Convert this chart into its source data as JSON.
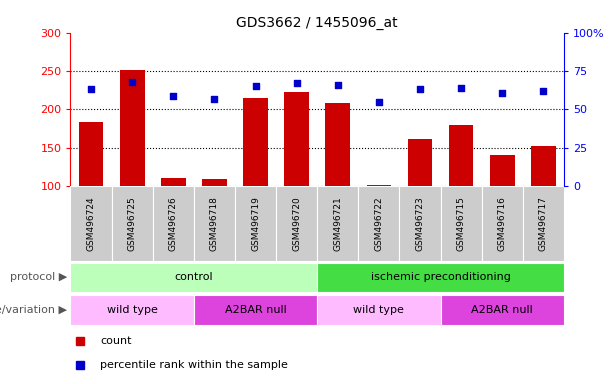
{
  "title": "GDS3662 / 1455096_at",
  "samples": [
    "GSM496724",
    "GSM496725",
    "GSM496726",
    "GSM496718",
    "GSM496719",
    "GSM496720",
    "GSM496721",
    "GSM496722",
    "GSM496723",
    "GSM496715",
    "GSM496716",
    "GSM496717"
  ],
  "counts": [
    184,
    252,
    111,
    109,
    215,
    223,
    209,
    102,
    161,
    180,
    141,
    152
  ],
  "percentiles": [
    63,
    68,
    59,
    57,
    65,
    67,
    66,
    55,
    63,
    64,
    61,
    62
  ],
  "ylim_left": [
    100,
    300
  ],
  "ylim_right": [
    0,
    100
  ],
  "yticks_left": [
    100,
    150,
    200,
    250,
    300
  ],
  "yticks_right": [
    0,
    25,
    50,
    75,
    100
  ],
  "bar_color": "#cc0000",
  "dot_color": "#0000cc",
  "protocol_control_color": "#bbffbb",
  "protocol_ischemic_color": "#44dd44",
  "genotype_wildtype_color": "#ffbbff",
  "genotype_a2bar_color": "#dd44dd",
  "protocol_label": "protocol",
  "genotype_label": "genotype/variation",
  "protocol_groups": [
    {
      "label": "control",
      "start": 0,
      "end": 6
    },
    {
      "label": "ischemic preconditioning",
      "start": 6,
      "end": 12
    }
  ],
  "genotype_groups": [
    {
      "label": "wild type",
      "start": 0,
      "end": 3,
      "color": "#ffbbff"
    },
    {
      "label": "A2BAR null",
      "start": 3,
      "end": 6,
      "color": "#dd44dd"
    },
    {
      "label": "wild type",
      "start": 6,
      "end": 9,
      "color": "#ffbbff"
    },
    {
      "label": "A2BAR null",
      "start": 9,
      "end": 12,
      "color": "#dd44dd"
    }
  ],
  "legend_count_label": "count",
  "legend_percentile_label": "percentile rank within the sample",
  "tick_bg_color": "#cccccc",
  "fig_width": 6.13,
  "fig_height": 3.84,
  "dpi": 100
}
